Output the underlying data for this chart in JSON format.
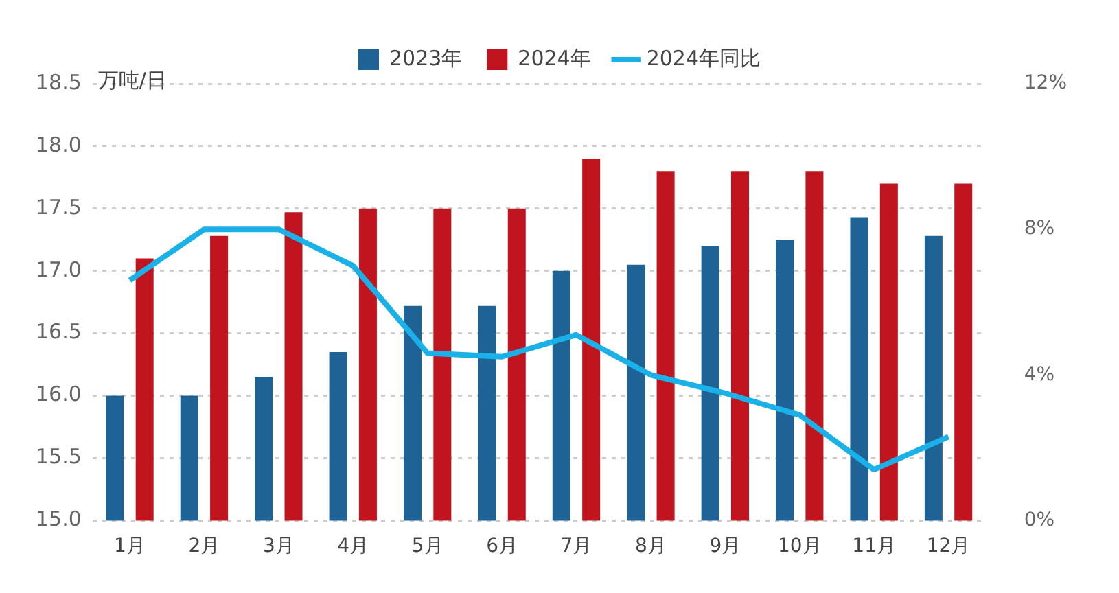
{
  "chart_data": {
    "type": "bar",
    "ylabel": "万吨/日",
    "categories": [
      "1月",
      "2月",
      "3月",
      "4月",
      "5月",
      "6月",
      "7月",
      "8月",
      "9月",
      "10月",
      "11月",
      "12月"
    ],
    "series": [
      {
        "name": "2023年",
        "color": "#1f6396",
        "values": [
          16.0,
          16.0,
          16.15,
          16.35,
          16.72,
          16.72,
          17.0,
          17.05,
          17.2,
          17.25,
          17.43,
          17.28
        ]
      },
      {
        "name": "2024年",
        "color": "#c0141e",
        "values": [
          17.1,
          17.28,
          17.47,
          17.5,
          17.5,
          17.5,
          17.9,
          17.8,
          17.8,
          17.8,
          17.7,
          17.7
        ]
      },
      {
        "name": "2024年同比",
        "type": "line",
        "axis": "y2",
        "color": "#1ab0e8",
        "values": [
          6.6,
          8.0,
          8.0,
          7.0,
          4.6,
          4.5,
          5.1,
          4.0,
          3.5,
          2.9,
          1.4,
          2.3
        ]
      }
    ],
    "ylim": [
      15.0,
      18.5
    ],
    "yticks": [
      {
        "value": 15,
        "label": "15.0"
      },
      {
        "value": 15.5,
        "label": "15.5"
      },
      {
        "value": 16,
        "label": "16.0"
      },
      {
        "value": 16.5,
        "label": "16.5"
      },
      {
        "value": 17,
        "label": "17.0"
      },
      {
        "value": 17.5,
        "label": "17.5"
      },
      {
        "value": 18,
        "label": "18.0"
      },
      {
        "value": 18.5,
        "label": "18.5"
      }
    ],
    "y2lim": [
      0,
      12
    ],
    "y2ticks": [
      {
        "value": 0,
        "label": "0%"
      },
      {
        "value": 4,
        "label": "4%"
      },
      {
        "value": 8,
        "label": "8%"
      },
      {
        "value": 12,
        "label": "12%"
      }
    ],
    "grid": "y",
    "legend": "top",
    "marker": "none",
    "line_style": "solid"
  }
}
